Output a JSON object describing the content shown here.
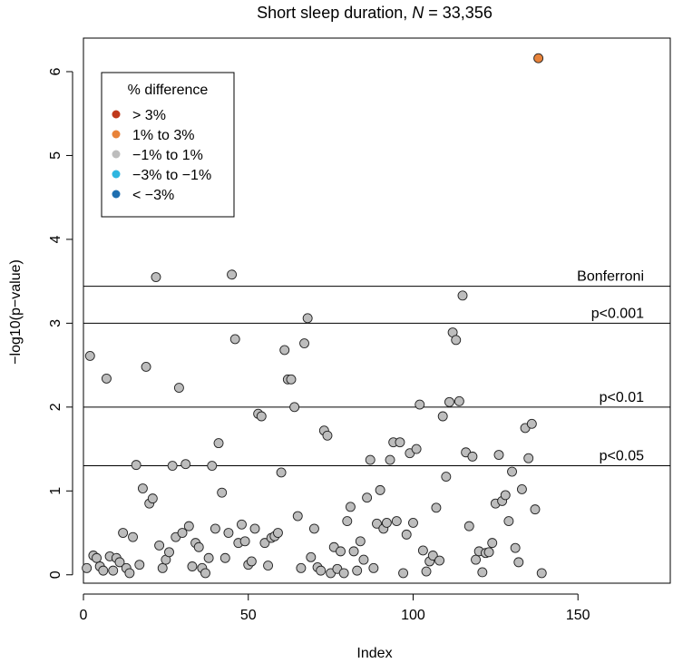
{
  "chart_data": {
    "type": "scatter",
    "title_prefix": "Short sleep duration, ",
    "title_n": "N",
    "title_suffix": " = 33,356",
    "xlabel": "Index",
    "ylabel": "−log10(p−value)",
    "xlim": [
      0,
      178
    ],
    "ylim": [
      -0.1,
      6.4
    ],
    "xticks": [
      0,
      50,
      100,
      150
    ],
    "yticks": [
      0,
      1,
      2,
      3,
      4,
      5,
      6
    ],
    "grid": false,
    "legend": {
      "title": "% difference",
      "placement": "top-left",
      "entries": [
        {
          "label": "> 3%",
          "color": "#c0391b"
        },
        {
          "label": "1% to 3%",
          "color": "#e8833a"
        },
        {
          "label": "−1% to 1%",
          "color": "#bdbdbd"
        },
        {
          "label": "−3% to −1%",
          "color": "#2fb6e0"
        },
        {
          "label": "< −3%",
          "color": "#1f6fb0"
        }
      ]
    },
    "hlines": [
      {
        "y": 3.44,
        "label": "Bonferroni"
      },
      {
        "y": 3.0,
        "label": "p<0.001"
      },
      {
        "y": 2.0,
        "label": "p<0.01"
      },
      {
        "y": 1.3,
        "label": "p<0.05"
      }
    ],
    "colors": {
      "gray": "#bdbdbd",
      "orange": "#e8833a",
      "outline": "#222222"
    },
    "points": [
      [
        1,
        0.08,
        0
      ],
      [
        2,
        2.61,
        0
      ],
      [
        3,
        0.23,
        0
      ],
      [
        4,
        0.2,
        0
      ],
      [
        5,
        0.1,
        0
      ],
      [
        6,
        0.05,
        0
      ],
      [
        7,
        2.34,
        0
      ],
      [
        8,
        0.22,
        0
      ],
      [
        9,
        0.05,
        0
      ],
      [
        10,
        0.2,
        0
      ],
      [
        11,
        0.15,
        0
      ],
      [
        12,
        0.5,
        0
      ],
      [
        13,
        0.08,
        0
      ],
      [
        14,
        0.02,
        0
      ],
      [
        15,
        0.45,
        0
      ],
      [
        16,
        1.31,
        0
      ],
      [
        17,
        0.12,
        0
      ],
      [
        18,
        1.03,
        0
      ],
      [
        19,
        2.48,
        0
      ],
      [
        20,
        0.85,
        0
      ],
      [
        21,
        0.91,
        0
      ],
      [
        22,
        3.55,
        0
      ],
      [
        23,
        0.35,
        0
      ],
      [
        24,
        0.08,
        0
      ],
      [
        25,
        0.18,
        0
      ],
      [
        26,
        0.27,
        0
      ],
      [
        27,
        1.3,
        0
      ],
      [
        28,
        0.45,
        0
      ],
      [
        29,
        2.23,
        0
      ],
      [
        30,
        0.5,
        0
      ],
      [
        31,
        1.32,
        0
      ],
      [
        32,
        0.58,
        0
      ],
      [
        33,
        0.1,
        0
      ],
      [
        34,
        0.38,
        0
      ],
      [
        35,
        0.33,
        0
      ],
      [
        36,
        0.08,
        0
      ],
      [
        37,
        0.02,
        0
      ],
      [
        38,
        0.2,
        0
      ],
      [
        39,
        1.3,
        0
      ],
      [
        40,
        0.55,
        0
      ],
      [
        41,
        1.57,
        0
      ],
      [
        42,
        0.98,
        0
      ],
      [
        43,
        0.2,
        0
      ],
      [
        44,
        0.5,
        0
      ],
      [
        45,
        3.58,
        0
      ],
      [
        46,
        2.81,
        0
      ],
      [
        47,
        0.38,
        0
      ],
      [
        48,
        0.6,
        0
      ],
      [
        49,
        0.4,
        0
      ],
      [
        50,
        0.12,
        0
      ],
      [
        51,
        0.16,
        0
      ],
      [
        52,
        0.55,
        0
      ],
      [
        53,
        1.92,
        0
      ],
      [
        54,
        1.89,
        0
      ],
      [
        55,
        0.38,
        0
      ],
      [
        56,
        0.11,
        0
      ],
      [
        57,
        0.44,
        0
      ],
      [
        58,
        0.46,
        0
      ],
      [
        59,
        0.5,
        0
      ],
      [
        60,
        1.22,
        0
      ],
      [
        61,
        2.68,
        0
      ],
      [
        62,
        2.33,
        0
      ],
      [
        63,
        2.33,
        0
      ],
      [
        64,
        2.0,
        0
      ],
      [
        65,
        0.7,
        0
      ],
      [
        66,
        0.08,
        0
      ],
      [
        67,
        2.76,
        0
      ],
      [
        68,
        3.06,
        0
      ],
      [
        69,
        0.21,
        0
      ],
      [
        70,
        0.55,
        0
      ],
      [
        71,
        0.09,
        0
      ],
      [
        72,
        0.05,
        0
      ],
      [
        73,
        1.72,
        0
      ],
      [
        74,
        1.66,
        0
      ],
      [
        75,
        0.02,
        0
      ],
      [
        76,
        0.33,
        0
      ],
      [
        77,
        0.07,
        0
      ],
      [
        78,
        0.28,
        0
      ],
      [
        79,
        0.02,
        0
      ],
      [
        80,
        0.64,
        0
      ],
      [
        81,
        0.81,
        0
      ],
      [
        82,
        0.28,
        0
      ],
      [
        83,
        0.05,
        0
      ],
      [
        84,
        0.4,
        0
      ],
      [
        85,
        0.18,
        0
      ],
      [
        86,
        0.92,
        0
      ],
      [
        87,
        1.37,
        0
      ],
      [
        88,
        0.08,
        0
      ],
      [
        89,
        0.61,
        0
      ],
      [
        90,
        1.01,
        0
      ],
      [
        91,
        0.55,
        0
      ],
      [
        92,
        0.62,
        0
      ],
      [
        93,
        1.37,
        0
      ],
      [
        94,
        1.58,
        0
      ],
      [
        95,
        0.64,
        0
      ],
      [
        96,
        1.58,
        0
      ],
      [
        97,
        0.02,
        0
      ],
      [
        98,
        0.48,
        0
      ],
      [
        99,
        1.45,
        0
      ],
      [
        100,
        0.62,
        0
      ],
      [
        101,
        1.5,
        0
      ],
      [
        102,
        2.03,
        0
      ],
      [
        103,
        0.29,
        0
      ],
      [
        104,
        0.04,
        0
      ],
      [
        105,
        0.16,
        0
      ],
      [
        106,
        0.23,
        0
      ],
      [
        107,
        0.8,
        0
      ],
      [
        108,
        0.17,
        0
      ],
      [
        109,
        1.89,
        0
      ],
      [
        110,
        1.17,
        0
      ],
      [
        111,
        2.06,
        0
      ],
      [
        112,
        2.89,
        0
      ],
      [
        113,
        2.8,
        0
      ],
      [
        114,
        2.07,
        0
      ],
      [
        115,
        3.33,
        0
      ],
      [
        116,
        1.46,
        0
      ],
      [
        117,
        0.58,
        0
      ],
      [
        118,
        1.41,
        0
      ],
      [
        119,
        0.18,
        0
      ],
      [
        120,
        0.28,
        0
      ],
      [
        121,
        0.03,
        0
      ],
      [
        122,
        0.26,
        0
      ],
      [
        123,
        0.27,
        0
      ],
      [
        124,
        0.38,
        0
      ],
      [
        125,
        0.85,
        0
      ],
      [
        126,
        1.43,
        0
      ],
      [
        127,
        0.88,
        0
      ],
      [
        128,
        0.95,
        0
      ],
      [
        129,
        0.64,
        0
      ],
      [
        130,
        1.23,
        0
      ],
      [
        131,
        0.32,
        0
      ],
      [
        132,
        0.15,
        0
      ],
      [
        133,
        1.02,
        0
      ],
      [
        134,
        1.75,
        0
      ],
      [
        135,
        1.39,
        0
      ],
      [
        136,
        1.8,
        0
      ],
      [
        137,
        0.78,
        0
      ],
      [
        138,
        6.16,
        1
      ],
      [
        139,
        0.02,
        0
      ]
    ]
  }
}
